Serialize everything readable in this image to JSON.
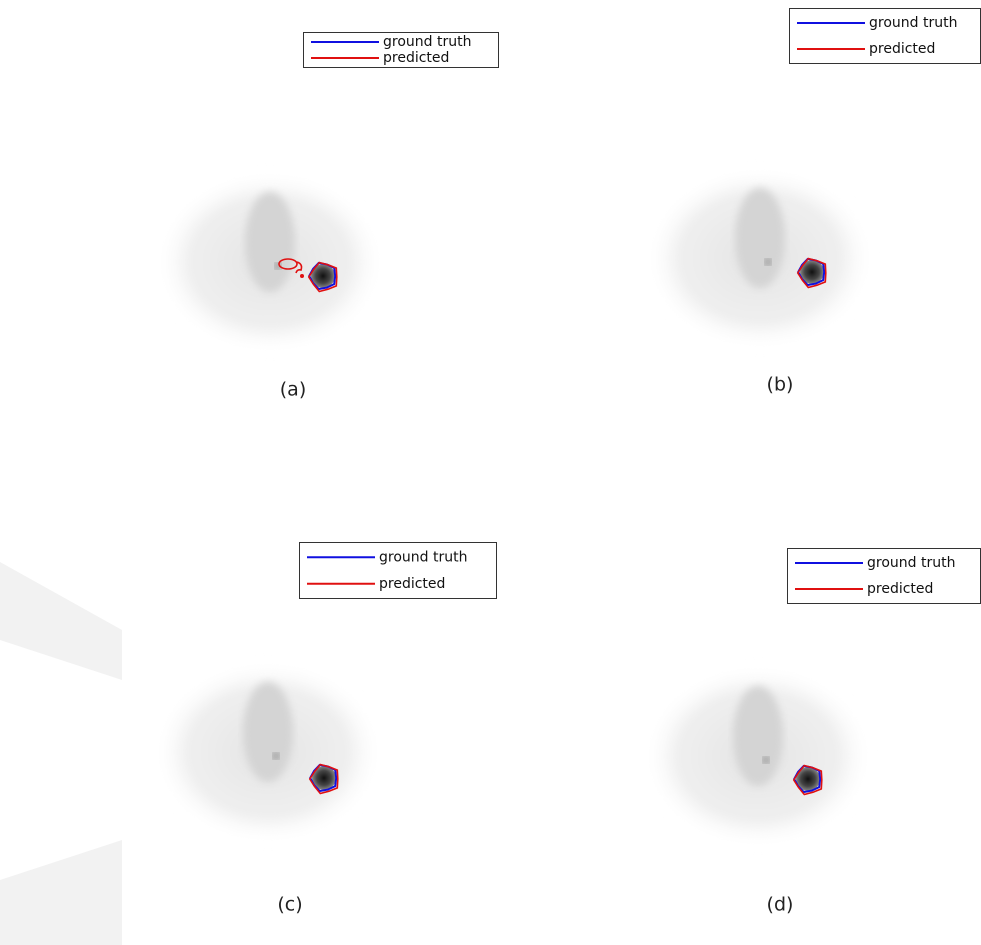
{
  "panels": [
    {
      "caption": "(a)",
      "legend": [
        {
          "label": "ground truth",
          "color": "#1010e0"
        },
        {
          "label": "predicted",
          "color": "#e01010"
        }
      ]
    },
    {
      "caption": "(b)",
      "legend": [
        {
          "label": "ground truth",
          "color": "#1010e0"
        },
        {
          "label": "predicted",
          "color": "#e01010"
        }
      ]
    },
    {
      "caption": "(c)",
      "legend": [
        {
          "label": "ground truth",
          "color": "#1010e0"
        },
        {
          "label": "predicted",
          "color": "#e01010"
        }
      ]
    },
    {
      "caption": "(d)",
      "legend": [
        {
          "label": "ground truth",
          "color": "#1010e0"
        },
        {
          "label": "predicted",
          "color": "#e01010"
        }
      ]
    }
  ]
}
